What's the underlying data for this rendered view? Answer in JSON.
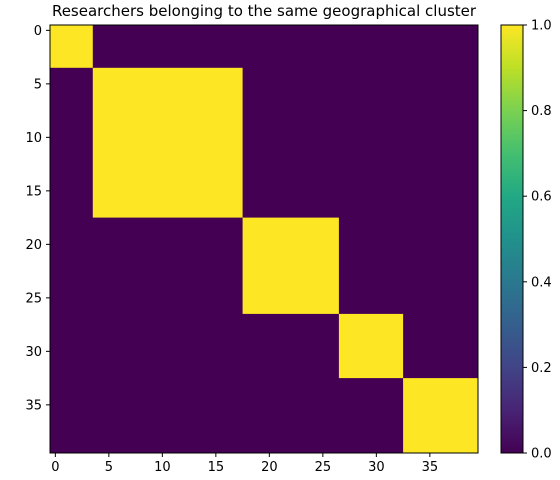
{
  "chart_data": {
    "type": "heatmap",
    "title": "Researchers belonging to the same geographical cluster",
    "xlabel": "",
    "ylabel": "",
    "size": 40,
    "clusters": [
      {
        "start": 0,
        "end": 3
      },
      {
        "start": 4,
        "end": 17
      },
      {
        "start": 18,
        "end": 26
      },
      {
        "start": 27,
        "end": 32
      },
      {
        "start": 33,
        "end": 39
      }
    ],
    "in_cluster_value": 1.0,
    "out_cluster_value": 0.0,
    "xlim": [
      -0.5,
      39.5
    ],
    "ylim": [
      39.5,
      -0.5
    ],
    "x_ticks": [
      0,
      5,
      10,
      15,
      20,
      25,
      30,
      35
    ],
    "y_ticks": [
      0,
      5,
      10,
      15,
      20,
      25,
      30,
      35
    ],
    "colorbar": {
      "range": [
        0.0,
        1.0
      ],
      "ticks": [
        "0.0",
        "0.2",
        "0.4",
        "0.6",
        "0.8",
        "1.0"
      ],
      "colormap": "viridis"
    },
    "colors": {
      "low": "#440154",
      "high": "#fde725"
    },
    "grid": false
  }
}
